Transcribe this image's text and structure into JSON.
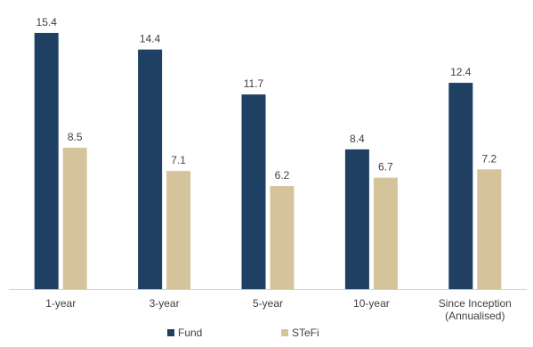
{
  "chart_data": {
    "type": "bar",
    "categories": [
      [
        "1-year"
      ],
      [
        "3-year"
      ],
      [
        "5-year"
      ],
      [
        "10-year"
      ],
      [
        "Since Inception",
        "(Annualised)"
      ]
    ],
    "series": [
      {
        "name": "Fund",
        "values": [
          15.4,
          14.4,
          11.7,
          8.4,
          12.4
        ],
        "color": "#1f3f63"
      },
      {
        "name": "STeFi",
        "values": [
          8.5,
          7.1,
          6.2,
          6.7,
          7.2
        ],
        "color": "#d5c49b"
      }
    ],
    "ylim": [
      0,
      16.2
    ],
    "grid": false,
    "legend_position": "bottom-center",
    "data_labels": true,
    "axis_color": "#cfcfcf",
    "label_color": "#404040"
  }
}
